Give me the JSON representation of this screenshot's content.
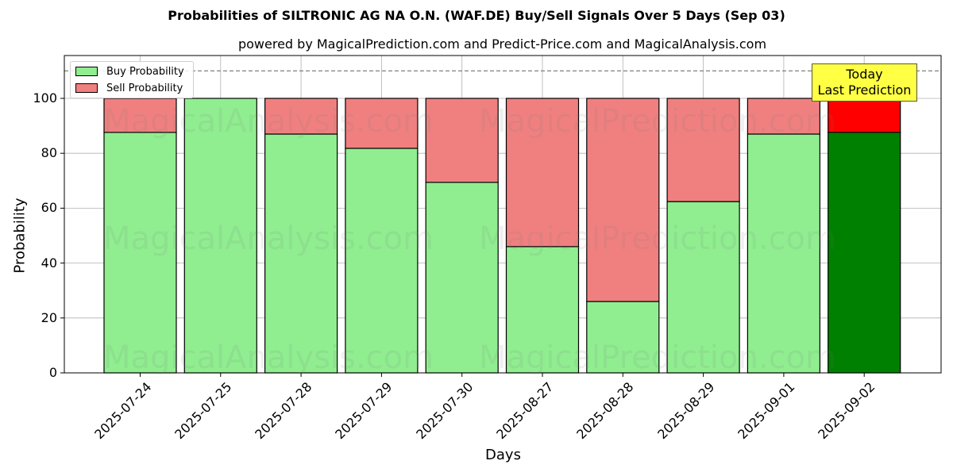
{
  "chart_data": {
    "type": "bar",
    "stacked": true,
    "title": "Probabilities of SILTRONIC AG NA O.N. (WAF.DE) Buy/Sell Signals Over 5 Days (Sep 03)",
    "subtitle": "powered by MagicalPrediction.com and Predict-Price.com and MagicalAnalysis.com",
    "xlabel": "Days",
    "ylabel": "Probability",
    "ylim": [
      0,
      115
    ],
    "yticks": [
      0,
      20,
      40,
      60,
      80,
      100
    ],
    "grid": true,
    "legend_position": "upper left",
    "reference_line": 110,
    "categories": [
      "2025-07-24",
      "2025-07-25",
      "2025-07-28",
      "2025-07-29",
      "2025-07-30",
      "2025-08-27",
      "2025-08-28",
      "2025-08-29",
      "2025-09-01",
      "2025-09-02"
    ],
    "series": [
      {
        "name": "Buy Probability",
        "color": "#90ee90",
        "values": [
          87.6,
          100.0,
          87.0,
          81.8,
          69.4,
          46.0,
          26.0,
          62.4,
          87.0,
          87.6
        ]
      },
      {
        "name": "Sell Probability",
        "color": "#f08080",
        "values": [
          12.4,
          0.0,
          13.0,
          18.2,
          30.6,
          54.0,
          74.0,
          37.6,
          13.0,
          12.4
        ]
      }
    ],
    "highlight": {
      "index": 9,
      "buy_color": "#008000",
      "sell_color": "#ff0000"
    },
    "annotation": {
      "text_line1": "Today",
      "text_line2": "Last Prediction",
      "background": "#ffff44"
    }
  },
  "legend": {
    "buy": "Buy Probability",
    "sell": "Sell Probability"
  },
  "watermarks": [
    "MagicalAnalysis.com",
    "MagicalPrediction.com"
  ]
}
